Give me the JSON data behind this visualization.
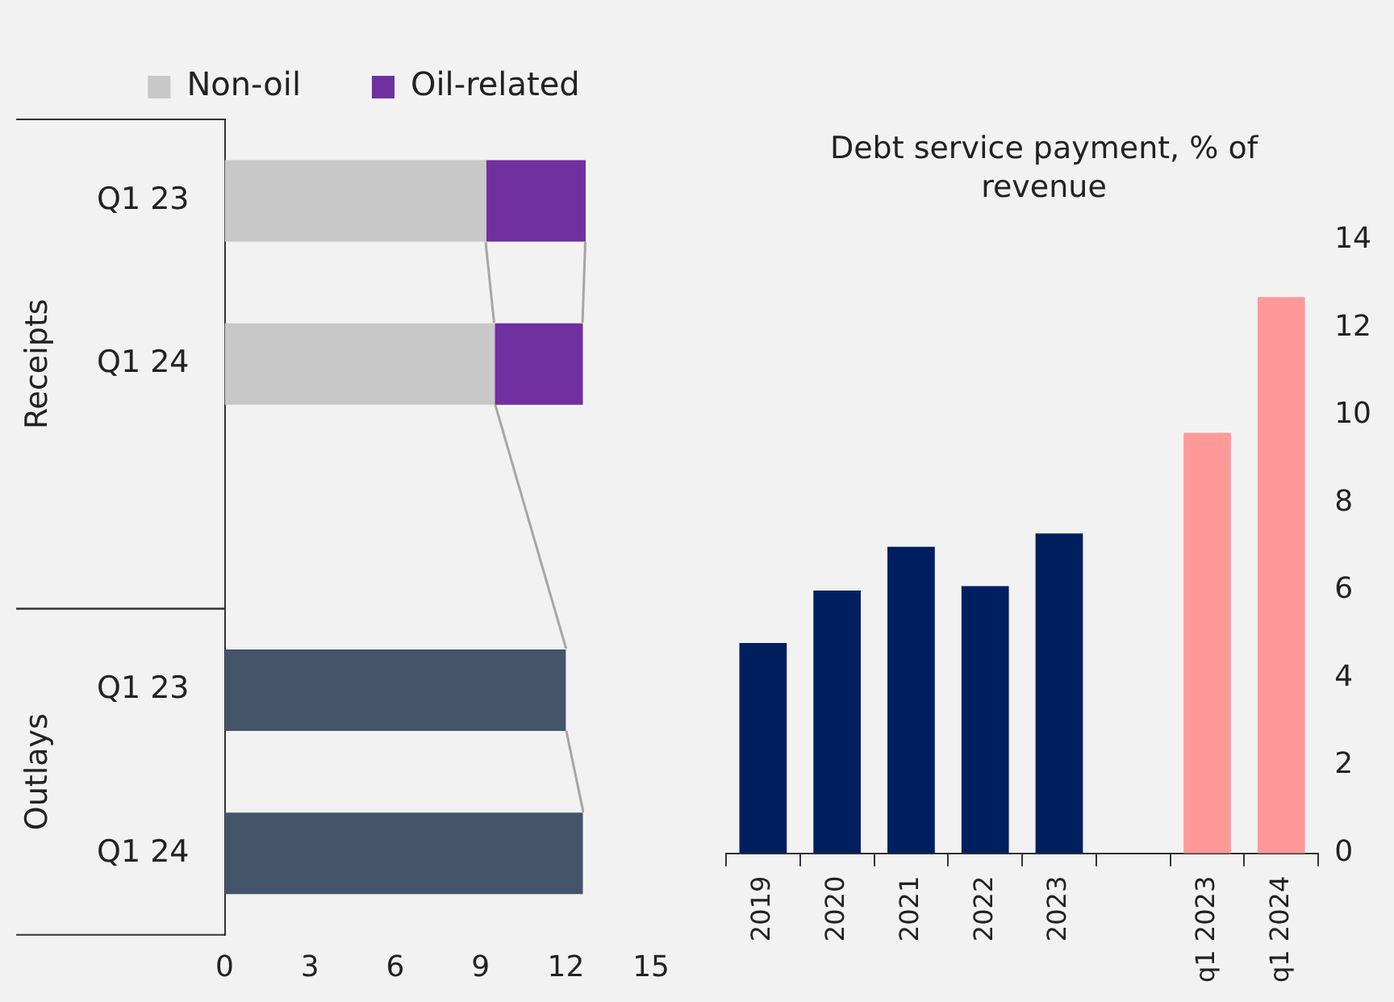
{
  "chart_data": [
    {
      "type": "bar",
      "orientation": "horizontal",
      "stacked": true,
      "categories": [
        "Q1 23",
        "Q1 24",
        null,
        "Q1 23",
        "Q1 24"
      ],
      "series": [
        {
          "name": "Non-oil",
          "color": "#c8c8c8",
          "values": [
            9.2,
            9.5,
            null,
            null,
            null
          ]
        },
        {
          "name": "Oil-related",
          "color": "#7030a0",
          "values": [
            3.5,
            3.1,
            null,
            null,
            null
          ]
        },
        {
          "color": "#44546a",
          "values": [
            null,
            null,
            null,
            12.0,
            12.6
          ]
        }
      ],
      "xlim": [
        0,
        15
      ],
      "xticks": [
        0,
        3,
        6,
        9,
        12,
        15
      ],
      "annotations": [
        "Receipts",
        "Outlays"
      ],
      "legend": "top",
      "grid": false
    },
    {
      "type": "bar",
      "title": "Debt service payment, % of revenue",
      "categories": [
        "2019",
        "2020",
        "2021",
        "2022",
        "2023",
        null,
        "q1 2023",
        "q1 2024"
      ],
      "values": [
        4.8,
        6.0,
        7.0,
        6.1,
        7.3,
        null,
        9.6,
        12.7
      ],
      "colors": [
        "#001f5f",
        "#001f5f",
        "#001f5f",
        "#001f5f",
        "#001f5f",
        "#001f5f",
        "#ff9999",
        "#ff9999"
      ],
      "ylim": [
        0,
        14
      ],
      "yticks": [
        0,
        2,
        4,
        6,
        8,
        10,
        12,
        14
      ],
      "grid": false,
      "legend": false
    }
  ]
}
